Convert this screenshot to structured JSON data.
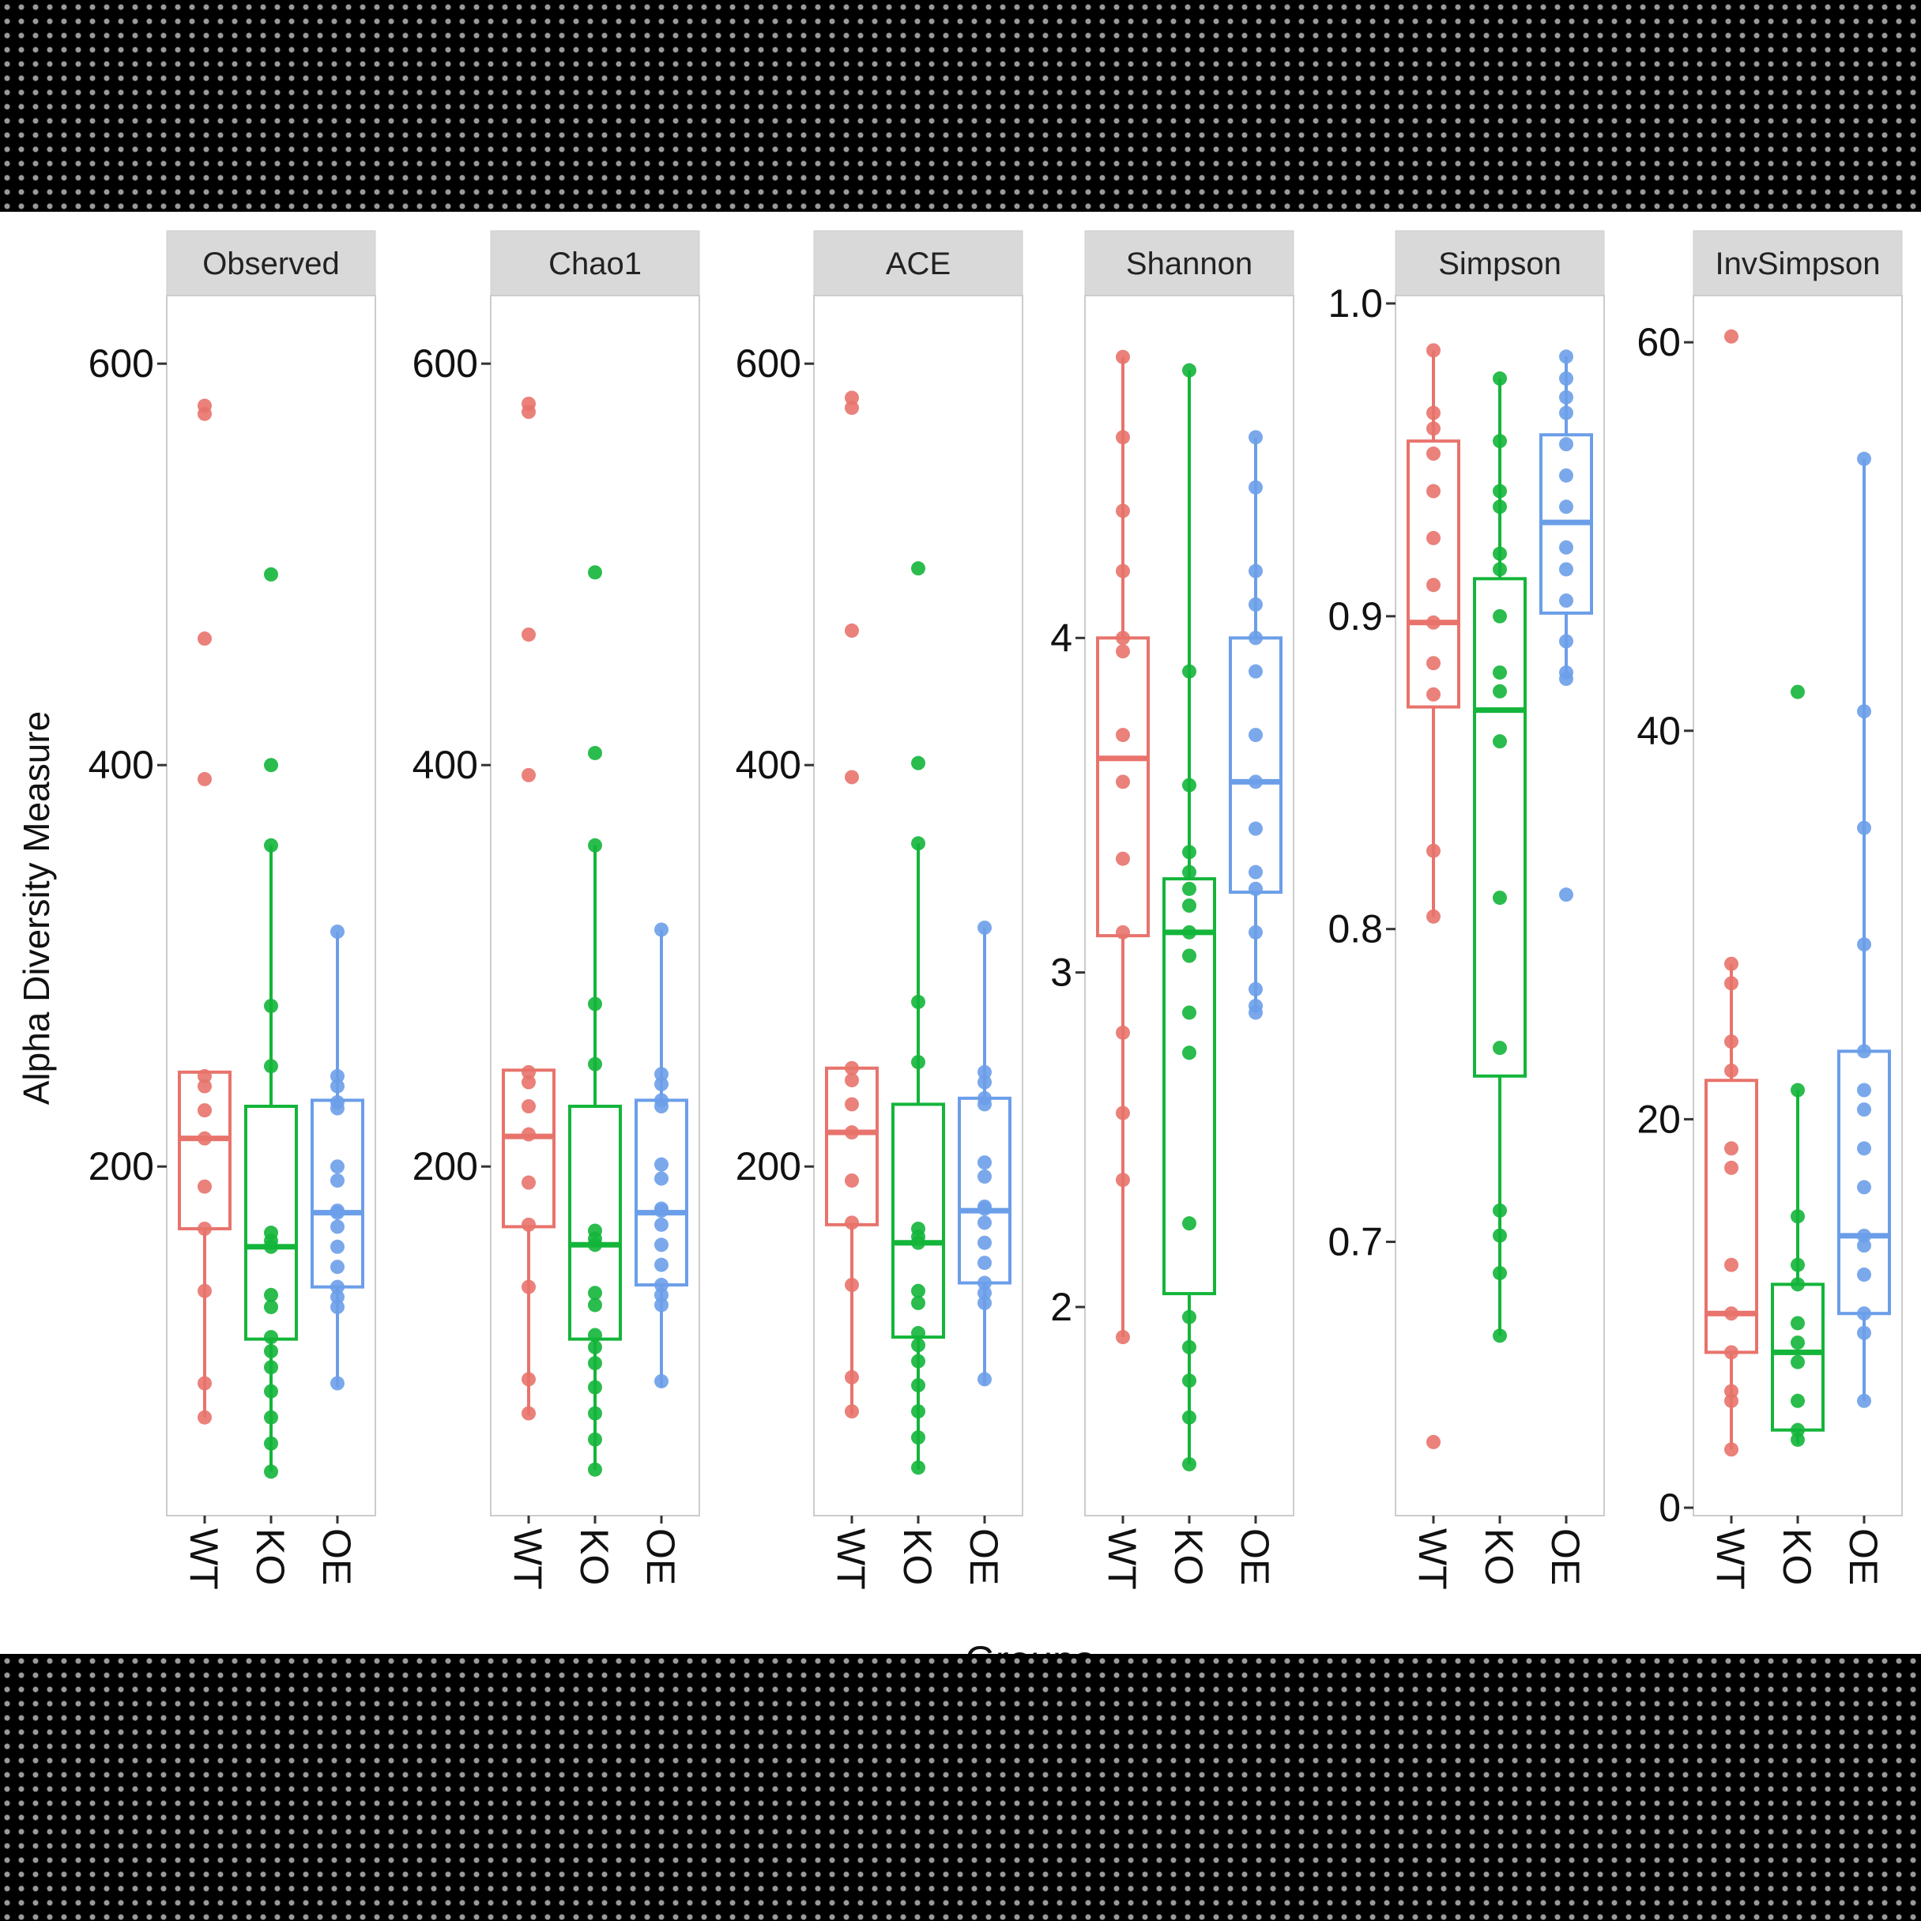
{
  "chart_data": {
    "type": "box",
    "ylabel": "Alpha Diversity Measure",
    "xlabel": "Groups",
    "groups": [
      "WT",
      "KO",
      "OE"
    ],
    "colors": {
      "WT": "#e8736c",
      "KO": "#13b53a",
      "OE": "#6b9ee9"
    },
    "panels": [
      {
        "name": "Observed",
        "ylim": [
          30,
          630
        ],
        "ticks": [
          200,
          400,
          600
        ],
        "boxes": {
          "WT": {
            "q1": 169,
            "median": 214,
            "q3": 247,
            "low": 75,
            "high": 247
          },
          "KO": {
            "q1": 114,
            "median": 160,
            "q3": 230,
            "low": 48,
            "high": 360
          },
          "OE": {
            "q1": 140,
            "median": 177,
            "q3": 233,
            "low": 90,
            "high": 317
          }
        },
        "points": {
          "WT": [
            579,
            575,
            463,
            393,
            245,
            240,
            228,
            214,
            190,
            169,
            138,
            92,
            75
          ],
          "KO": [
            495,
            400,
            360,
            280,
            250,
            167,
            163,
            160,
            136,
            130,
            115,
            108,
            100,
            88,
            75,
            62,
            48
          ],
          "OE": [
            317,
            245,
            240,
            232,
            229,
            200,
            193,
            178,
            177,
            170,
            160,
            150,
            140,
            135,
            130,
            92
          ]
        }
      },
      {
        "name": "Chao1",
        "ylim": [
          30,
          630
        ],
        "ticks": [
          200,
          400,
          600
        ],
        "boxes": {
          "WT": {
            "q1": 170,
            "median": 215,
            "q3": 248,
            "low": 76,
            "high": 248
          },
          "KO": {
            "q1": 114,
            "median": 161,
            "q3": 230,
            "low": 49,
            "high": 360
          },
          "OE": {
            "q1": 141,
            "median": 177,
            "q3": 233,
            "low": 90,
            "high": 318
          }
        },
        "points": {
          "WT": [
            580,
            576,
            465,
            395,
            247,
            242,
            230,
            216,
            192,
            171,
            140,
            94,
            77
          ],
          "KO": [
            496,
            406,
            360,
            281,
            251,
            168,
            164,
            161,
            137,
            131,
            116,
            110,
            102,
            90,
            77,
            64,
            49
          ],
          "OE": [
            318,
            246,
            241,
            233,
            230,
            201,
            194,
            179,
            178,
            171,
            161,
            151,
            141,
            136,
            131,
            93
          ]
        }
      },
      {
        "name": "ACE",
        "ylim": [
          30,
          630
        ],
        "ticks": [
          200,
          400,
          600
        ],
        "boxes": {
          "WT": {
            "q1": 171,
            "median": 217,
            "q3": 249,
            "low": 76,
            "high": 249
          },
          "KO": {
            "q1": 115,
            "median": 162,
            "q3": 231,
            "low": 49,
            "high": 361
          },
          "OE": {
            "q1": 142,
            "median": 178,
            "q3": 234,
            "low": 91,
            "high": 319
          }
        },
        "points": {
          "WT": [
            583,
            578,
            467,
            394,
            249,
            243,
            231,
            217,
            193,
            172,
            141,
            95,
            78
          ],
          "KO": [
            498,
            401,
            361,
            282,
            252,
            169,
            165,
            162,
            138,
            132,
            117,
            111,
            103,
            91,
            78,
            65,
            50
          ],
          "OE": [
            319,
            247,
            242,
            234,
            231,
            202,
            195,
            180,
            179,
            172,
            162,
            152,
            142,
            137,
            132,
            94
          ]
        }
      },
      {
        "name": "Shannon",
        "ylim": [
          1.4,
          5.0
        ],
        "ticks": [
          2,
          3,
          4
        ],
        "boxes": {
          "WT": {
            "q1": 3.11,
            "median": 3.64,
            "q3": 4.0,
            "low": 1.91,
            "high": 4.84
          },
          "KO": {
            "q1": 2.04,
            "median": 3.12,
            "q3": 3.28,
            "low": 1.53,
            "high": 4.8
          },
          "OE": {
            "q1": 3.24,
            "median": 3.57,
            "q3": 4.0,
            "low": 2.88,
            "high": 4.6
          }
        },
        "points": {
          "WT": [
            4.84,
            4.6,
            4.38,
            4.2,
            4.0,
            3.96,
            3.71,
            3.57,
            3.34,
            3.12,
            2.82,
            2.58,
            2.38,
            1.91
          ],
          "KO": [
            4.8,
            3.9,
            3.56,
            3.36,
            3.3,
            3.25,
            3.2,
            3.12,
            3.05,
            2.88,
            2.76,
            2.25,
            1.97,
            1.88,
            1.78,
            1.67,
            1.53
          ],
          "OE": [
            4.6,
            4.45,
            4.2,
            4.1,
            4.0,
            3.9,
            3.71,
            3.57,
            3.43,
            3.3,
            3.25,
            3.12,
            2.95,
            2.9,
            2.88
          ]
        }
      },
      {
        "name": "Simpson",
        "ylim": [
          0.615,
          1.0
        ],
        "ticks": [
          0.7,
          0.8,
          0.9,
          1.0
        ],
        "tick_labels": [
          "0.7",
          "0.8",
          "0.9",
          "1.0"
        ],
        "boxes": {
          "WT": {
            "q1": 0.871,
            "median": 0.898,
            "q3": 0.956,
            "low": 0.804,
            "high": 0.985
          },
          "KO": {
            "q1": 0.753,
            "median": 0.87,
            "q3": 0.912,
            "low": 0.67,
            "high": 0.976
          },
          "OE": {
            "q1": 0.901,
            "median": 0.93,
            "q3": 0.958,
            "low": 0.88,
            "high": 0.983
          }
        },
        "points": {
          "WT": [
            0.985,
            0.965,
            0.96,
            0.952,
            0.94,
            0.925,
            0.91,
            0.898,
            0.885,
            0.875,
            0.825,
            0.804,
            0.636
          ],
          "KO": [
            0.976,
            0.956,
            0.94,
            0.935,
            0.92,
            0.915,
            0.9,
            0.882,
            0.876,
            0.86,
            0.81,
            0.762,
            0.71,
            0.702,
            0.69,
            0.67
          ],
          "OE": [
            0.983,
            0.976,
            0.97,
            0.965,
            0.955,
            0.945,
            0.935,
            0.922,
            0.915,
            0.905,
            0.892,
            0.882,
            0.88,
            0.811
          ]
        }
      },
      {
        "name": "InvSimpson",
        "ylim": [
          0,
          62
        ],
        "ticks": [
          0,
          20,
          40,
          60
        ],
        "boxes": {
          "WT": {
            "q1": 8,
            "median": 10,
            "q3": 22,
            "low": 3,
            "high": 28
          },
          "KO": {
            "q1": 4,
            "median": 8,
            "q3": 11.5,
            "low": 3.3,
            "high": 21.5
          },
          "OE": {
            "q1": 10,
            "median": 14,
            "q3": 23.5,
            "low": 5.5,
            "high": 54
          }
        },
        "points": {
          "WT": [
            60.3,
            28,
            27,
            24,
            22.5,
            18.5,
            17.5,
            12.5,
            10,
            8,
            6,
            5.5,
            3
          ],
          "KO": [
            42,
            21.5,
            15,
            12.5,
            11.5,
            9.5,
            8.5,
            7.5,
            5.5,
            4,
            3.5
          ],
          "OE": [
            54,
            41,
            35,
            29,
            23.5,
            21.5,
            20.5,
            18.5,
            16.5,
            14,
            13.5,
            12,
            10,
            9,
            5.5
          ]
        }
      }
    ]
  }
}
